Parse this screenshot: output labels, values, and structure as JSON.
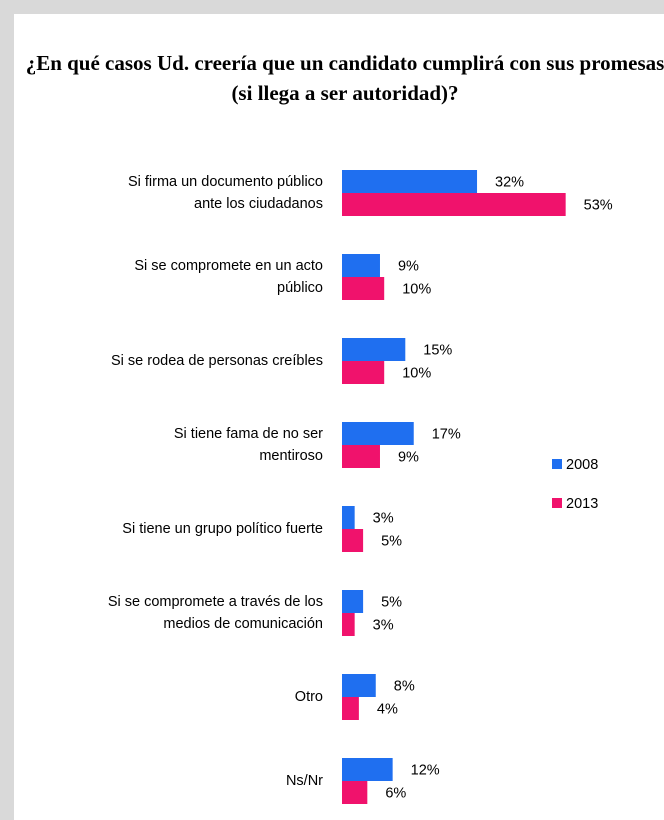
{
  "chart_data": {
    "type": "bar",
    "orientation": "horizontal",
    "title": "¿En qué casos Ud. creería que un candidato cumplirá con sus promesas (si llega a ser autoridad)?",
    "categories": [
      "Si firma un documento público\nante los ciudadanos",
      "Si se compromete en un acto\npúblico",
      "Si se rodea de personas creíbles",
      "Si tiene fama de no ser\nmentiroso",
      "Si tiene un grupo político fuerte",
      "Si se compromete a través de los\nmedios de comunicación",
      "Otro",
      "Ns/Nr"
    ],
    "series": [
      {
        "name": "2008",
        "color": "#1f6ff0",
        "values": [
          32,
          9,
          15,
          17,
          3,
          5,
          8,
          12
        ],
        "value_labels": [
          "32%",
          "9%",
          "15%",
          "17%",
          "3%",
          "5%",
          "8%",
          "12%"
        ]
      },
      {
        "name": "2013",
        "color": "#f0126c",
        "values": [
          53,
          10,
          10,
          9,
          5,
          3,
          4,
          6
        ],
        "value_labels": [
          "53%",
          "10%",
          "10%",
          "9%",
          "5%",
          "3%",
          "4%",
          "6%"
        ]
      }
    ],
    "legend": "right"
  }
}
